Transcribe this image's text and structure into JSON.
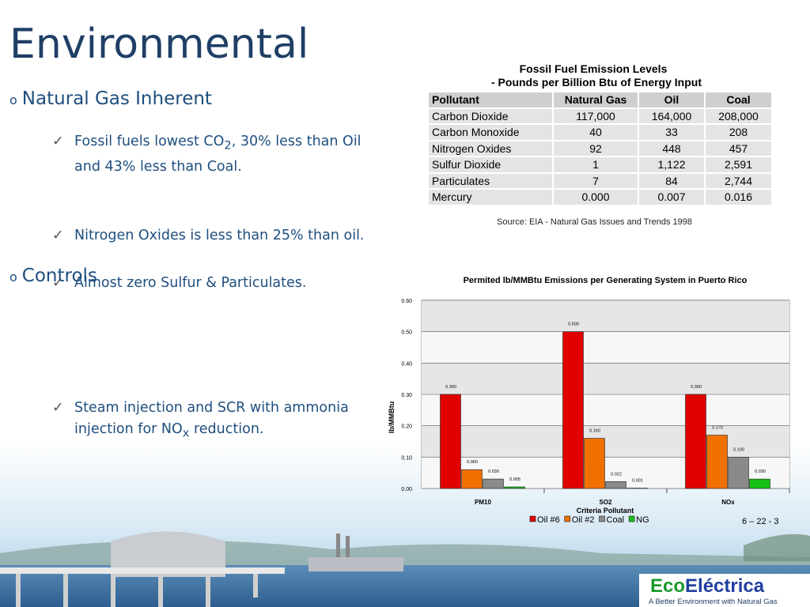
{
  "title": "Environmental",
  "sections": [
    {
      "heading": "Natural Gas Inherent",
      "items": [
        {
          "before": "Fossil fuels lowest CO",
          "sub": "2",
          "after": ", 30% less than Oil and 43% less than Coal."
        },
        {
          "before": "Nitrogen Oxides is less than 25% than oil."
        },
        {
          "before": "Almost zero Sulfur & Particulates."
        }
      ]
    },
    {
      "heading": "Controls",
      "items": [
        {
          "before": "Steam injection and SCR with ammonia injection for NO",
          "sub": "x",
          "after": " reduction."
        }
      ]
    }
  ],
  "table": {
    "title": "Fossil Fuel Emission Levels",
    "subtitle": "- Pounds per Billion Btu of Energy Input",
    "header": [
      "Pollutant",
      "Natural Gas",
      "Oil",
      "Coal"
    ],
    "rows": [
      [
        "Carbon Dioxide",
        "117,000",
        "164,000",
        "208,000"
      ],
      [
        "Carbon Monoxide",
        "40",
        "33",
        "208"
      ],
      [
        "Nitrogen Oxides",
        "92",
        "448",
        "457"
      ],
      [
        "Sulfur Dioxide",
        "1",
        "1,122",
        "2,591"
      ],
      [
        "Particulates",
        "7",
        "84",
        "2,744"
      ],
      [
        "Mercury",
        "0.000",
        "0.007",
        "0.016"
      ]
    ],
    "source": "Source: EIA - Natural Gas Issues and Trends 1998"
  },
  "chart_data": {
    "type": "bar",
    "title": "Permited lb/MMBtu Emissions per Generating System in Puerto Rico",
    "y_label": "lb/MMBtu",
    "x_label": "Criteria Pollutant",
    "categories": [
      "PM10",
      "SO2",
      "NOx"
    ],
    "series": [
      {
        "name": "Oil #6",
        "color": "#e00000",
        "values": [
          0.3,
          0.5,
          0.3
        ],
        "value_labels": [
          "0.300",
          "0.500",
          "0.300"
        ]
      },
      {
        "name": "Oil #2",
        "color": "#f07000",
        "values": [
          0.06,
          0.16,
          0.17
        ],
        "value_labels": [
          "0.060",
          "0.160",
          "0.170"
        ]
      },
      {
        "name": "Coal",
        "color": "#8a8a8a",
        "values": [
          0.03,
          0.022,
          0.1
        ],
        "value_labels": [
          "0.030",
          "0.022",
          "0.100"
        ]
      },
      {
        "name": "NG",
        "color": "#18c018",
        "values": [
          0.005,
          0.001,
          0.03
        ],
        "value_labels": [
          "0.005",
          "0.001",
          "0.030"
        ]
      }
    ],
    "ylim": [
      0,
      0.6
    ],
    "yticks": [
      {
        "value": 0,
        "label": "0.00"
      },
      {
        "value": 0.1,
        "label": "0.10"
      },
      {
        "value": 0.2,
        "label": "0.20"
      },
      {
        "value": 0.3,
        "label": "0.30"
      },
      {
        "value": 0.4,
        "label": "0.40"
      },
      {
        "value": 0.5,
        "label": "0.50"
      },
      {
        "value": 0.6,
        "label": "0.60"
      }
    ],
    "grid": true
  },
  "footer": {
    "page": "6 – 22 - 3",
    "logo_eco": "Eco",
    "logo_electrica": "Eléctrica",
    "tagline": "A Better Environment with Natural Gas"
  }
}
